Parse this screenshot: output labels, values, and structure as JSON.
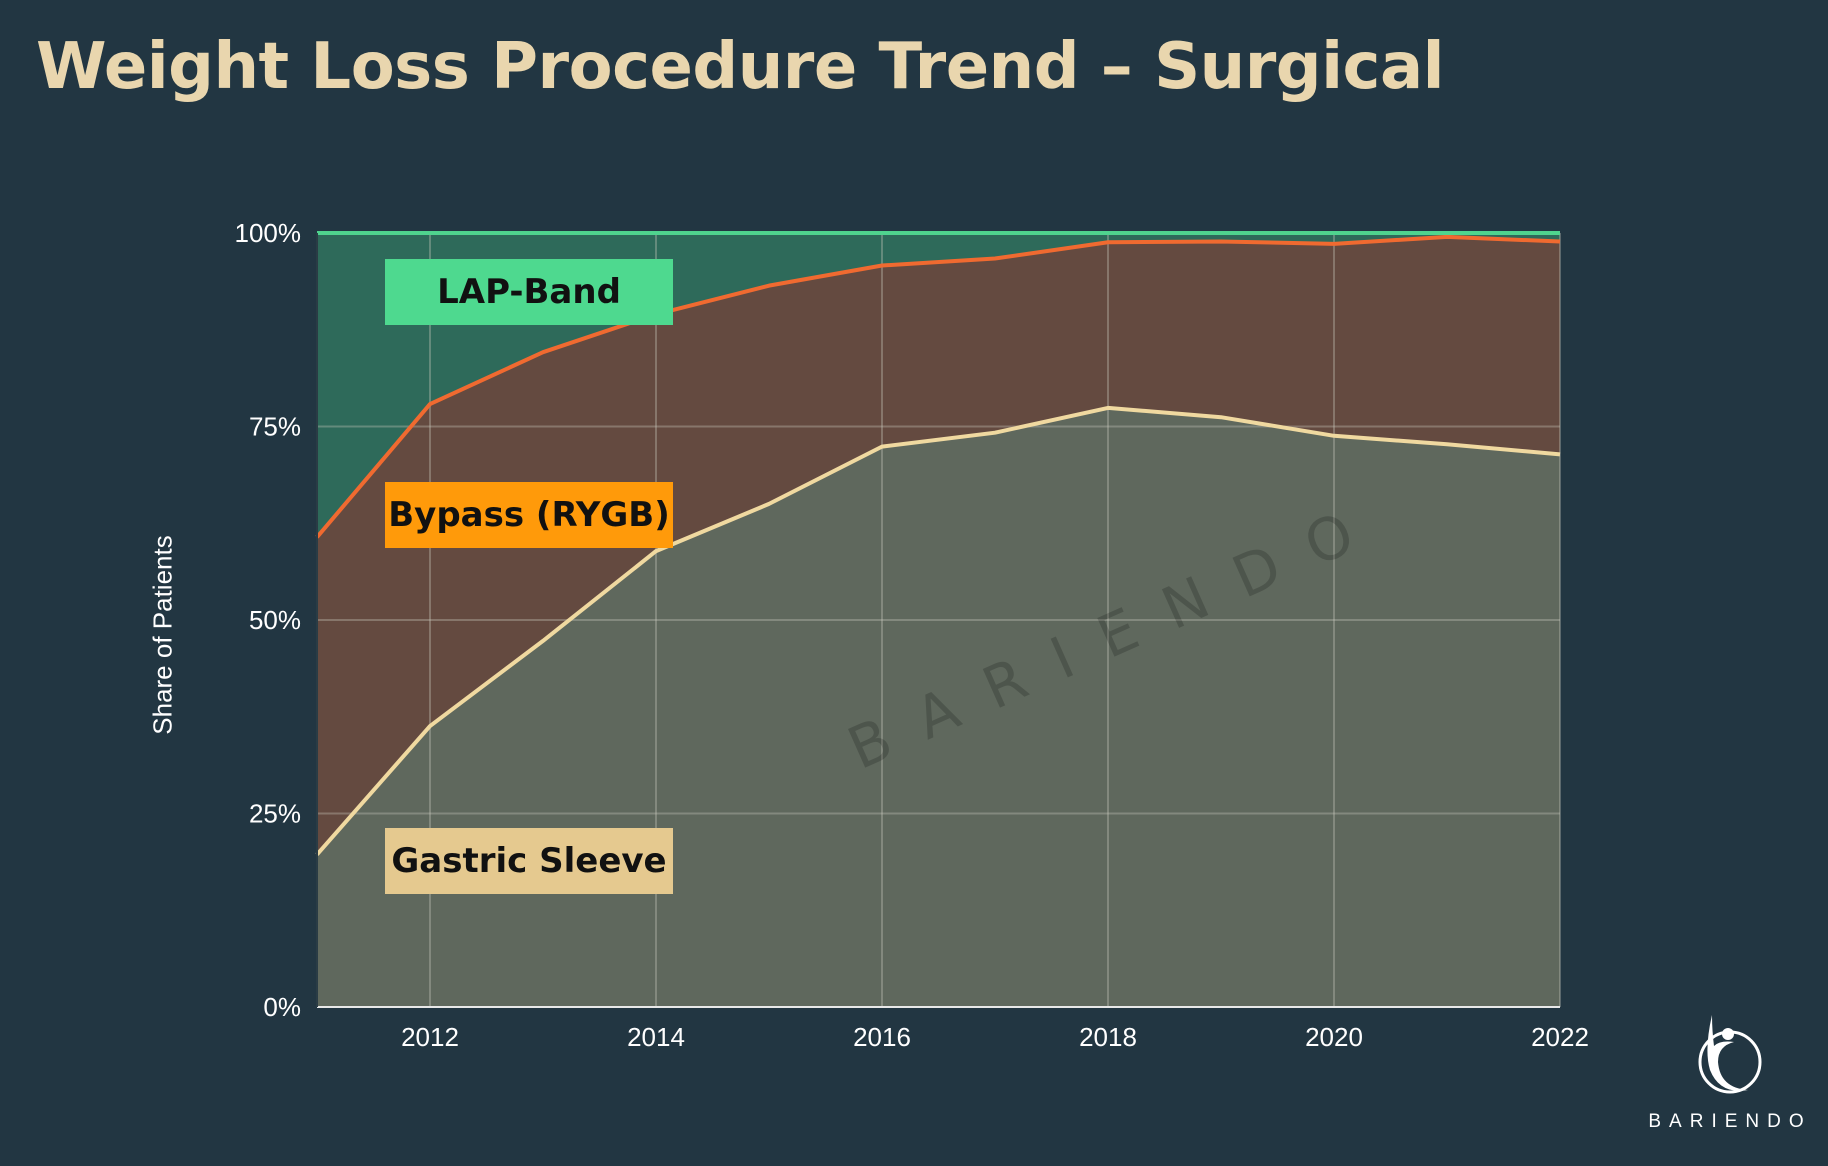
{
  "title": "Weight Loss Procedure Trend – Surgical",
  "chart_data": {
    "type": "area",
    "stacked": true,
    "x": [
      2011,
      2012,
      2013,
      2014,
      2015,
      2016,
      2017,
      2018,
      2019,
      2020,
      2021,
      2022
    ],
    "xticks": [
      "2012",
      "2014",
      "2016",
      "2018",
      "2020",
      "2022"
    ],
    "yticks": [
      "0%",
      "25%",
      "50%",
      "75%",
      "100%"
    ],
    "ylim": [
      0,
      100
    ],
    "ylabel": "Share of Patients",
    "xlabel": "",
    "grid": true,
    "series": [
      {
        "name": "Gastric Sleeve",
        "values": [
          19.7,
          36.3,
          47.3,
          58.9,
          65.0,
          72.4,
          74.2,
          77.4,
          76.2,
          73.8,
          72.7,
          71.4
        ],
        "fill": "#5f685d",
        "line": "#f0d9a0",
        "label_bg": "#e5c98f"
      },
      {
        "name": "Bypass (RYGB)",
        "values": [
          41.0,
          41.6,
          37.3,
          30.6,
          28.2,
          23.4,
          22.5,
          21.4,
          22.7,
          24.8,
          26.8,
          27.5
        ],
        "fill": "#644a40",
        "line": "#f06a30",
        "label_bg": "#ff9a0a"
      },
      {
        "name": "LAP-Band",
        "values": [
          39.3,
          22.1,
          15.4,
          10.5,
          6.8,
          4.2,
          3.3,
          1.2,
          1.1,
          1.4,
          0.5,
          1.1
        ],
        "fill": "#2e6a5a",
        "line": "#4fd48e",
        "label_bg": "#4ed98f"
      }
    ]
  },
  "watermark": "BARIENDO",
  "logo": {
    "text": "BARIENDO"
  }
}
